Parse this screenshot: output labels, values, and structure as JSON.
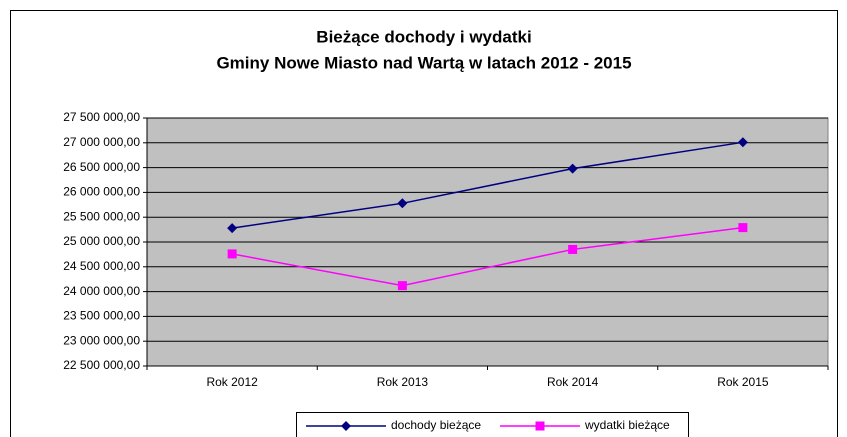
{
  "chart_data": {
    "type": "line",
    "title": [
      "Bieżące dochody i wydatki",
      "Gminy Nowe Miasto nad Wartą w latach 2012 - 2015"
    ],
    "categories": [
      "Rok 2012",
      "Rok 2013",
      "Rok 2014",
      "Rok 2015"
    ],
    "series": [
      {
        "name": "dochody bieżące",
        "color": "#000080",
        "marker": "diamond",
        "values": [
          25280000,
          25780000,
          26480000,
          27010000
        ]
      },
      {
        "name": "wydatki bieżące",
        "color": "#ff00ff",
        "marker": "square",
        "values": [
          24760000,
          24120000,
          24850000,
          25290000
        ]
      }
    ],
    "ylim": [
      22500000,
      27500000
    ],
    "yticks": [
      {
        "value": 22500000,
        "label": "22 500 000,00"
      },
      {
        "value": 23000000,
        "label": "23 000 000,00"
      },
      {
        "value": 23500000,
        "label": "23 500 000,00"
      },
      {
        "value": 24000000,
        "label": "24 000 000,00"
      },
      {
        "value": 24500000,
        "label": "24 500 000,00"
      },
      {
        "value": 25000000,
        "label": "25 000 000,00"
      },
      {
        "value": 25500000,
        "label": "25 500 000,00"
      },
      {
        "value": 26000000,
        "label": "26 000 000,00"
      },
      {
        "value": 26500000,
        "label": "26 500 000,00"
      },
      {
        "value": 27000000,
        "label": "27 000 000,00"
      },
      {
        "value": 27500000,
        "label": "27 500 000,00"
      }
    ],
    "grid": true,
    "legend": "bottom",
    "plot_background": "#c0c0c0"
  }
}
